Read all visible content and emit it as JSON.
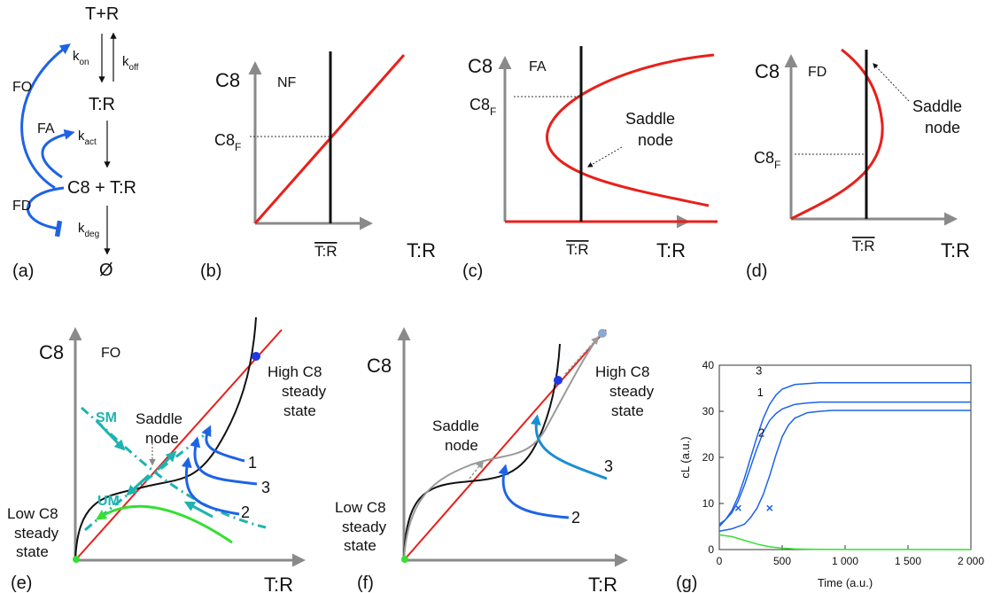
{
  "panel_a": {
    "tr_sum": "T+R",
    "k_on": "k",
    "k_on_sub": "on",
    "k_off": "k",
    "k_off_sub": "off",
    "complex": "T:R",
    "k_act": "k",
    "k_act_sub": "act",
    "product": "C8 + T:R",
    "k_deg": "k",
    "k_deg_sub": "deg",
    "empty": "Ø",
    "fo": "FO",
    "fa": "FA",
    "fd": "FD",
    "letter": "(a)"
  },
  "panel_b": {
    "y": "C8",
    "tag": "NF",
    "c8f": "C8",
    "c8f_sub": "F",
    "tr_bar": "T:R",
    "x": "T:R",
    "letter": "(b)"
  },
  "panel_c": {
    "y": "C8",
    "tag": "FA",
    "c8f": "C8",
    "c8f_sub": "F",
    "saddle1": "Saddle",
    "saddle2": "node",
    "tr_bar": "T:R",
    "x": "T:R",
    "letter": "(c)"
  },
  "panel_d": {
    "y": "C8",
    "tag": "FD",
    "c8f": "C8",
    "c8f_sub": "F",
    "saddle1": "Saddle",
    "saddle2": "node",
    "tr_bar": "T:R",
    "x": "T:R",
    "letter": "(d)"
  },
  "panel_e": {
    "y": "C8",
    "tag": "FO",
    "high1": "High C8",
    "high2": "steady",
    "high3": "state",
    "saddle1": "Saddle",
    "saddle2": "node",
    "sm": "SM",
    "um": "UM",
    "low1": "Low C8",
    "low2": "steady",
    "low3": "state",
    "t1": "1",
    "t2": "2",
    "t3": "3",
    "x": "T:R",
    "letter": "(e)"
  },
  "panel_f": {
    "y": "C8",
    "high1": "High C8",
    "high2": "steady",
    "high3": "state",
    "saddle1": "Saddle",
    "saddle2": "node",
    "low1": "Low C8",
    "low2": "steady",
    "low3": "state",
    "t2": "2",
    "t3": "3",
    "x": "T:R",
    "letter": "(f)"
  },
  "colors": {
    "red": "#e8201a",
    "blue": "#1e63e6",
    "teal": "#1fb3b0",
    "green": "#33e033",
    "gray": "#9a9a9a"
  },
  "chart_data": {
    "type": "line",
    "xlabel": "Time (a.u.)",
    "ylabel": "cL (a.u.)",
    "xlim": [
      0,
      2000
    ],
    "ylim": [
      0,
      40
    ],
    "xticks": [
      0,
      500,
      1000,
      1500,
      2000
    ],
    "xtick_labels": [
      "0",
      "500",
      "1 000",
      "1 500",
      "2 000"
    ],
    "yticks": [
      0,
      10,
      20,
      30,
      40
    ],
    "ytick_labels": [
      "0",
      "10",
      "20",
      "30",
      "40"
    ],
    "grid": false,
    "panel_letter": "(g)",
    "series": [
      {
        "name": "3",
        "color": "#1e63e6",
        "x": [
          0,
          50,
          100,
          150,
          200,
          250,
          300,
          350,
          400,
          450,
          500,
          600,
          700,
          800,
          1000,
          1500,
          2000
        ],
        "y": [
          5,
          6.5,
          8.5,
          11.5,
          15.5,
          20,
          24.5,
          28.5,
          31.5,
          33.5,
          34.8,
          35.8,
          36,
          36.2,
          36.2,
          36.2,
          36.2
        ]
      },
      {
        "name": "1",
        "color": "#1e63e6",
        "x": [
          0,
          50,
          100,
          150,
          200,
          250,
          300,
          350,
          400,
          450,
          500,
          600,
          700,
          800,
          1000,
          1500,
          2000
        ],
        "y": [
          5.5,
          6.5,
          8,
          10.5,
          14,
          18,
          22,
          25.5,
          28,
          29.5,
          30.5,
          31.5,
          31.8,
          32,
          32,
          32,
          32
        ]
      },
      {
        "name": "2",
        "color": "#1e63e6",
        "x": [
          0,
          100,
          200,
          250,
          300,
          350,
          400,
          450,
          500,
          550,
          600,
          700,
          800,
          900,
          1000,
          1500,
          2000
        ],
        "y": [
          4,
          4.5,
          5.5,
          7,
          9,
          12,
          16,
          20.5,
          24.5,
          27,
          28.5,
          29.7,
          30,
          30.2,
          30.2,
          30.2,
          30.2
        ]
      },
      {
        "name": "",
        "color": "#33e033",
        "x": [
          0,
          100,
          200,
          300,
          400,
          500,
          600,
          700,
          800,
          1000,
          1500,
          2000
        ],
        "y": [
          3.2,
          2.8,
          2.0,
          1.2,
          0.6,
          0.3,
          0.15,
          0.08,
          0.04,
          0.02,
          0.01,
          0.0
        ]
      }
    ],
    "labels": [
      {
        "text": "3",
        "x": 290,
        "y": 38
      },
      {
        "text": "1",
        "x": 300,
        "y": 33.3
      },
      {
        "text": "2",
        "x": 310,
        "y": 24.5
      }
    ],
    "markers": [
      {
        "x": 150,
        "y": 9
      },
      {
        "x": 400,
        "y": 9
      }
    ]
  }
}
